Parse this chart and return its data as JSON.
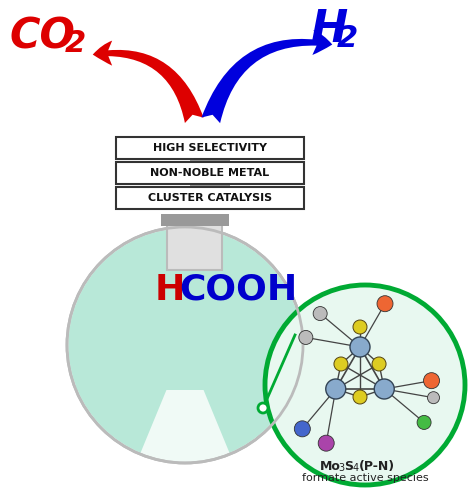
{
  "background_color": "#ffffff",
  "co2_color": "#dd0000",
  "h2_color": "#0000dd",
  "hcooh_h_color": "#cc0000",
  "hcooh_cooh_color": "#0000cc",
  "box_labels": [
    "HIGH SELECTIVITY",
    "NON-NOBLE METAL",
    "CLUSTER CATALYSIS"
  ],
  "box_text_color": "#111111",
  "flask_body_color": "#f0faf6",
  "flask_outline_color": "#bbbbbb",
  "flask_liquid_color": "#b8e8d8",
  "flask_neck_fill": "#e0e0e0",
  "circle_bg_color": "#e8f8f0",
  "circle_outline_color": "#00aa33",
  "mol_label_color": "#222222",
  "connector_color": "#00aa33",
  "gray_bar_color": "#999999"
}
